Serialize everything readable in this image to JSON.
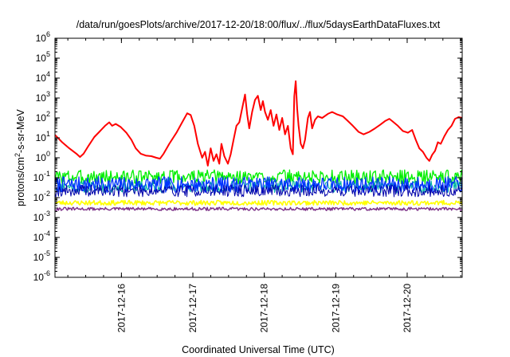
{
  "chart_data": {
    "type": "line",
    "title": "/data/run/goesPlots/archive/2017-12-20/18:00/flux/../flux/5daysEarthDataFluxes.txt",
    "xlabel": "Coordinated Universal Time (UTC)",
    "ylabel": {
      "main": "protons/cm",
      "sup": "2",
      "rest": "-s-sr-MeV"
    },
    "y_scale": "log",
    "ylim_exponents": [
      -6,
      6
    ],
    "y_tick_base": "10",
    "y_tick_exponents": [
      "-6",
      "-5",
      "-4",
      "-3",
      "-2",
      "-1",
      "0",
      "1",
      "2",
      "3",
      "4",
      "5",
      "6"
    ],
    "xlim_days": [
      0,
      5.7
    ],
    "x_ticks": [
      {
        "label": "2017-12-16",
        "day": 0.93
      },
      {
        "label": "2017-12-17",
        "day": 1.93
      },
      {
        "label": "2017-12-18",
        "day": 2.93
      },
      {
        "label": "2017-12-19",
        "day": 3.93
      },
      {
        "label": "2017-12-20",
        "day": 4.93
      }
    ],
    "grid": false,
    "legend": "none",
    "series": [
      {
        "color": "#ff0000",
        "width": 2,
        "points": [
          [
            0.0,
            14
          ],
          [
            0.1,
            6
          ],
          [
            0.2,
            3
          ],
          [
            0.3,
            1.6
          ],
          [
            0.35,
            1.1
          ],
          [
            0.4,
            1.6
          ],
          [
            0.47,
            4
          ],
          [
            0.55,
            11
          ],
          [
            0.62,
            20
          ],
          [
            0.7,
            40
          ],
          [
            0.76,
            60
          ],
          [
            0.8,
            40
          ],
          [
            0.85,
            50
          ],
          [
            0.92,
            35
          ],
          [
            1.0,
            18
          ],
          [
            1.07,
            8
          ],
          [
            1.13,
            3
          ],
          [
            1.2,
            1.6
          ],
          [
            1.27,
            1.3
          ],
          [
            1.35,
            1.2
          ],
          [
            1.42,
            1.0
          ],
          [
            1.47,
            0.9
          ],
          [
            1.52,
            1.6
          ],
          [
            1.6,
            5
          ],
          [
            1.7,
            18
          ],
          [
            1.78,
            60
          ],
          [
            1.85,
            170
          ],
          [
            1.9,
            140
          ],
          [
            1.95,
            40
          ],
          [
            2.0,
            5
          ],
          [
            2.06,
            1
          ],
          [
            2.1,
            2
          ],
          [
            2.14,
            0.4
          ],
          [
            2.18,
            3
          ],
          [
            2.22,
            0.7
          ],
          [
            2.26,
            1.5
          ],
          [
            2.3,
            0.5
          ],
          [
            2.33,
            5
          ],
          [
            2.37,
            1.2
          ],
          [
            2.42,
            0.5
          ],
          [
            2.46,
            1.5
          ],
          [
            2.5,
            8
          ],
          [
            2.54,
            40
          ],
          [
            2.58,
            60
          ],
          [
            2.62,
            300
          ],
          [
            2.66,
            1500
          ],
          [
            2.69,
            150
          ],
          [
            2.72,
            30
          ],
          [
            2.76,
            200
          ],
          [
            2.8,
            800
          ],
          [
            2.84,
            1300
          ],
          [
            2.88,
            250
          ],
          [
            2.91,
            700
          ],
          [
            2.94,
            200
          ],
          [
            2.98,
            80
          ],
          [
            3.02,
            250
          ],
          [
            3.06,
            40
          ],
          [
            3.1,
            150
          ],
          [
            3.14,
            25
          ],
          [
            3.18,
            100
          ],
          [
            3.22,
            15
          ],
          [
            3.26,
            40
          ],
          [
            3.3,
            3
          ],
          [
            3.33,
            1.5
          ],
          [
            3.35,
            1200
          ],
          [
            3.37,
            7000
          ],
          [
            3.39,
            300
          ],
          [
            3.41,
            40
          ],
          [
            3.44,
            5
          ],
          [
            3.47,
            3
          ],
          [
            3.5,
            8
          ],
          [
            3.54,
            100
          ],
          [
            3.57,
            200
          ],
          [
            3.6,
            30
          ],
          [
            3.64,
            80
          ],
          [
            3.68,
            120
          ],
          [
            3.74,
            100
          ],
          [
            3.82,
            160
          ],
          [
            3.88,
            200
          ],
          [
            3.95,
            150
          ],
          [
            4.03,
            120
          ],
          [
            4.1,
            70
          ],
          [
            4.17,
            40
          ],
          [
            4.25,
            20
          ],
          [
            4.32,
            15
          ],
          [
            4.4,
            20
          ],
          [
            4.48,
            30
          ],
          [
            4.55,
            45
          ],
          [
            4.62,
            70
          ],
          [
            4.68,
            90
          ],
          [
            4.72,
            70
          ],
          [
            4.8,
            40
          ],
          [
            4.87,
            22
          ],
          [
            4.94,
            18
          ],
          [
            5.0,
            25
          ],
          [
            5.05,
            8
          ],
          [
            5.1,
            3
          ],
          [
            5.15,
            2
          ],
          [
            5.2,
            1.0
          ],
          [
            5.24,
            0.7
          ],
          [
            5.28,
            1.4
          ],
          [
            5.32,
            2.2
          ],
          [
            5.36,
            6
          ],
          [
            5.4,
            5
          ],
          [
            5.45,
            12
          ],
          [
            5.5,
            25
          ],
          [
            5.55,
            40
          ],
          [
            5.6,
            90
          ],
          [
            5.65,
            110
          ],
          [
            5.7,
            100
          ]
        ]
      },
      {
        "color": "#00ee00",
        "width": 1.3,
        "band": {
          "center": 0.11,
          "amplitude_decades": 0.35,
          "samples": 460,
          "seed": 3
        }
      },
      {
        "color": "#00b3a6",
        "width": 1.1,
        "band": {
          "center": 0.035,
          "amplitude_decades": 0.3,
          "samples": 460,
          "seed": 11
        }
      },
      {
        "color": "#0033ff",
        "width": 1.3,
        "band": {
          "center": 0.045,
          "amplitude_decades": 0.4,
          "samples": 460,
          "seed": 7
        }
      },
      {
        "color": "#0000aa",
        "width": 1.0,
        "band": {
          "center": 0.022,
          "amplitude_decades": 0.3,
          "samples": 460,
          "seed": 19
        }
      },
      {
        "color": "#ffff00",
        "width": 1.6,
        "band": {
          "center": 0.0055,
          "amplitude_decades": 0.12,
          "samples": 460,
          "seed": 23
        }
      },
      {
        "color": "#7b2e86",
        "width": 1.4,
        "band": {
          "center": 0.0027,
          "amplitude_decades": 0.08,
          "samples": 460,
          "seed": 31
        }
      }
    ]
  }
}
